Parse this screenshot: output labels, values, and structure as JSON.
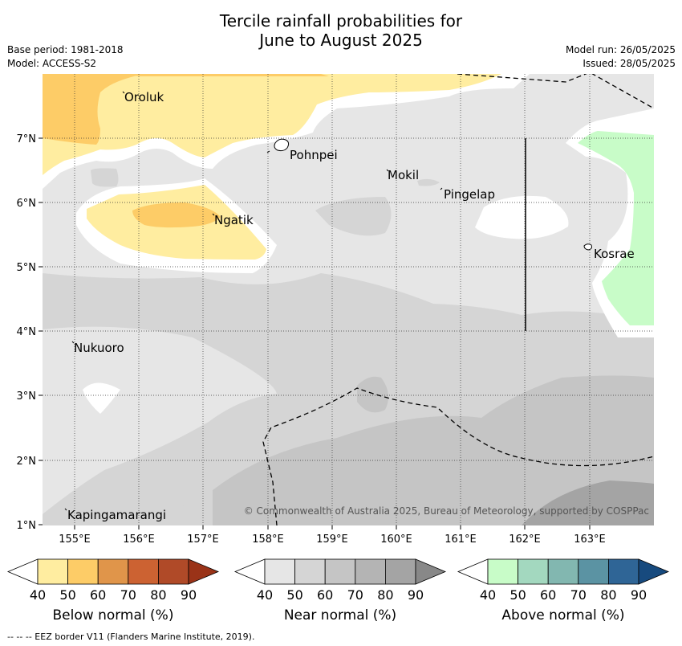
{
  "title_line1": "Tercile rainfall probabilities for",
  "title_line2": "June to August 2025",
  "meta_left": [
    "Base period: 1981-2018",
    "Model: ACCESS-S2"
  ],
  "meta_right": [
    "Model run: 26/05/2025",
    "Issued: 28/05/2025"
  ],
  "copyright": "© Commonwealth of Australia 2025, Bureau of Meteorology, supported by COSPPac",
  "footer": "--  --  -- EEZ border V11 (Flanders Marine Institute, 2019).",
  "map": {
    "lon_range": [
      154.5,
      164.0
    ],
    "lat_range": [
      1.0,
      8.0
    ],
    "lon_ticks": [
      "155°E",
      "156°E",
      "157°E",
      "158°E",
      "159°E",
      "160°E",
      "161°E",
      "162°E",
      "163°E"
    ],
    "lat_ticks": [
      "1°N",
      "2°N",
      "3°N",
      "4°N",
      "5°N",
      "6°N",
      "7°N"
    ],
    "places": [
      {
        "name": "Oroluk",
        "lon": 155.7,
        "lat": 7.65
      },
      {
        "name": "Pohnpei",
        "lon": 158.2,
        "lat": 6.85
      },
      {
        "name": "Mokil",
        "lon": 159.8,
        "lat": 6.45
      },
      {
        "name": "Pingelap",
        "lon": 160.7,
        "lat": 6.2
      },
      {
        "name": "Ngatik",
        "lon": 157.2,
        "lat": 5.8
      },
      {
        "name": "Kosrae",
        "lon": 163.0,
        "lat": 5.3
      },
      {
        "name": "Nukuoro",
        "lon": 154.9,
        "lat": 3.85
      },
      {
        "name": "Kapingamarangi",
        "lon": 154.9,
        "lat": 1.25
      }
    ]
  },
  "colorbars": [
    {
      "title": "Below normal (%)",
      "ticks": [
        "40",
        "50",
        "60",
        "70",
        "80",
        "90"
      ],
      "colors": [
        "#ffeda0",
        "#fdcc67",
        "#e0954a",
        "#cc6232",
        "#b04a28",
        "#9a3318"
      ]
    },
    {
      "title": "Near normal (%)",
      "ticks": [
        "40",
        "50",
        "60",
        "70",
        "80",
        "90"
      ],
      "colors": [
        "#e6e6e6",
        "#d5d5d5",
        "#c5c5c5",
        "#b4b4b4",
        "#a4a4a4",
        "#888888"
      ]
    },
    {
      "title": "Above normal (%)",
      "ticks": [
        "40",
        "50",
        "60",
        "70",
        "80",
        "90"
      ],
      "colors": [
        "#c8fcc8",
        "#a3d8bf",
        "#82b7b0",
        "#5b93a3",
        "#2f6596",
        "#174a7e"
      ]
    }
  ]
}
